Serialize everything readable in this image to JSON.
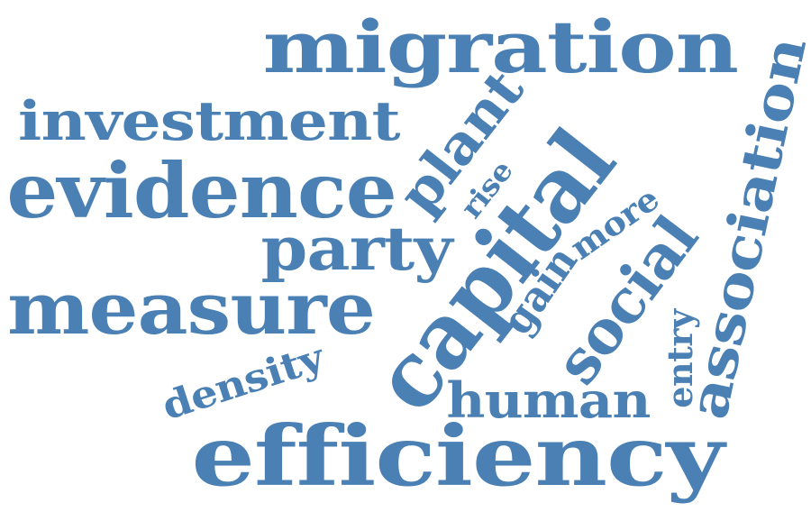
{
  "palette": {
    "word_color": "#4a80b4",
    "background": "#ffffff"
  },
  "words": [
    {
      "id": "migration",
      "text": "migration",
      "orientation": "horizontal"
    },
    {
      "id": "investment",
      "text": "investment",
      "orientation": "horizontal"
    },
    {
      "id": "evidence",
      "text": "evidence",
      "orientation": "horizontal"
    },
    {
      "id": "party",
      "text": "party",
      "orientation": "horizontal"
    },
    {
      "id": "measure",
      "text": "measure",
      "orientation": "horizontal"
    },
    {
      "id": "density",
      "text": "density",
      "orientation": "diagonal"
    },
    {
      "id": "efficiency",
      "text": "efficiency",
      "orientation": "horizontal"
    },
    {
      "id": "human",
      "text": "human",
      "orientation": "horizontal"
    },
    {
      "id": "capital",
      "text": "capital",
      "orientation": "diagonal"
    },
    {
      "id": "plant",
      "text": "plant",
      "orientation": "diagonal"
    },
    {
      "id": "rise",
      "text": "rise",
      "orientation": "diagonal"
    },
    {
      "id": "more",
      "text": "more",
      "orientation": "diagonal"
    },
    {
      "id": "gain",
      "text": "gain",
      "orientation": "diagonal"
    },
    {
      "id": "social",
      "text": "social",
      "orientation": "diagonal"
    },
    {
      "id": "entry",
      "text": "entry",
      "orientation": "vertical"
    },
    {
      "id": "association",
      "text": "association",
      "orientation": "diagonal"
    }
  ]
}
